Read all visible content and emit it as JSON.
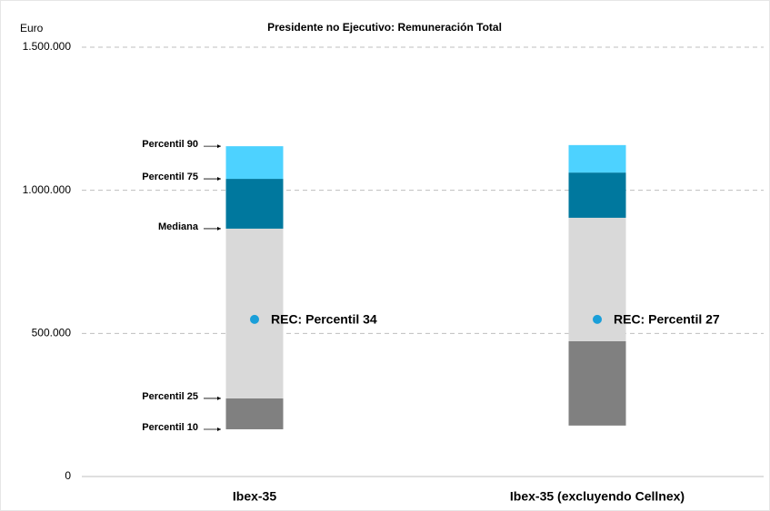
{
  "chart_data": {
    "type": "floating-percentile-bar",
    "title": "Presidente no Ejecutivo: Remuneración Total",
    "y_label": "Euro",
    "categories": [
      "Ibex-35",
      "Ibex-35 (excluyendo Cellnex)"
    ],
    "series": [
      {
        "name": "Percentil 10",
        "values": [
          165000,
          178000
        ]
      },
      {
        "name": "Percentil 25",
        "color": "#808080",
        "values": [
          273000,
          473000
        ]
      },
      {
        "name": "Mediana",
        "color": "#d9d9d9",
        "values": [
          866000,
          904000
        ]
      },
      {
        "name": "Percentil 75",
        "color": "#00789e",
        "values": [
          1040000,
          1062000
        ]
      },
      {
        "name": "Percentil 90",
        "color": "#4dd2ff",
        "values": [
          1154000,
          1158000
        ]
      }
    ],
    "rec": {
      "values": [
        549000,
        549000
      ],
      "labels": [
        "REC: Percentil 34",
        "REC: Percentil 27"
      ],
      "color": "#1a9fd9"
    },
    "ylim": [
      0,
      1500000
    ],
    "yticks": [
      0,
      {
        "value": 500000,
        "label": "500.000"
      },
      {
        "value": 1000000,
        "label": "1.000.000"
      },
      {
        "value": 1500000,
        "label": "1.500.000"
      }
    ],
    "grid": true
  }
}
